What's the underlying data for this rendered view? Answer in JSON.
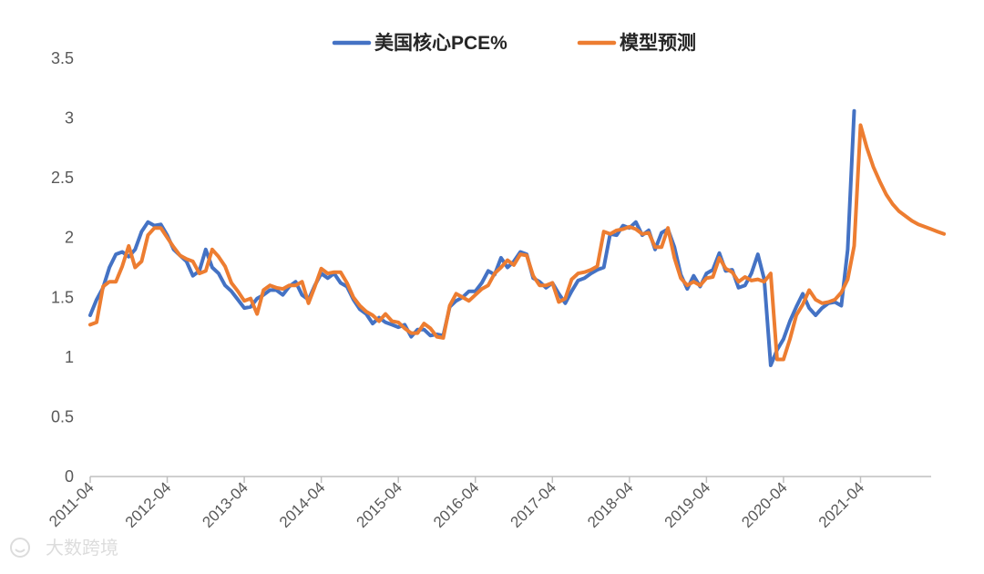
{
  "chart_data": {
    "type": "line",
    "title": "",
    "xlabel": "",
    "ylabel": "",
    "ylim": [
      0,
      3.5
    ],
    "yticks": [
      "0",
      "0.5",
      "1",
      "1.5",
      "2",
      "2.5",
      "3",
      "3.5"
    ],
    "x_start": "2011-04",
    "x_end": "2022-03",
    "xtick_labels": [
      "2011-04",
      "2012-04",
      "2013-04",
      "2014-04",
      "2015-04",
      "2016-04",
      "2017-04",
      "2018-04",
      "2019-04",
      "2020-04",
      "2021-04"
    ],
    "grid": false,
    "legend_position": "top",
    "series": [
      {
        "name": "美国核心PCE%",
        "color": "#4472C4",
        "values": [
          1.35,
          1.48,
          1.58,
          1.75,
          1.86,
          1.88,
          1.84,
          1.9,
          2.05,
          2.13,
          2.1,
          2.11,
          2.02,
          1.9,
          1.85,
          1.8,
          1.68,
          1.72,
          1.9,
          1.75,
          1.7,
          1.6,
          1.55,
          1.48,
          1.41,
          1.42,
          1.49,
          1.52,
          1.56,
          1.56,
          1.52,
          1.59,
          1.63,
          1.52,
          1.48,
          1.6,
          1.7,
          1.66,
          1.7,
          1.62,
          1.59,
          1.48,
          1.4,
          1.36,
          1.28,
          1.33,
          1.29,
          1.27,
          1.25,
          1.27,
          1.17,
          1.23,
          1.23,
          1.18,
          1.19,
          1.18,
          1.42,
          1.47,
          1.5,
          1.55,
          1.55,
          1.62,
          1.72,
          1.69,
          1.83,
          1.75,
          1.8,
          1.88,
          1.86,
          1.66,
          1.63,
          1.58,
          1.62,
          1.53,
          1.45,
          1.55,
          1.64,
          1.66,
          1.7,
          1.73,
          1.75,
          2.03,
          2.02,
          2.1,
          2.08,
          2.13,
          2.02,
          2.06,
          1.9,
          2.04,
          2.07,
          1.92,
          1.69,
          1.57,
          1.68,
          1.59,
          1.7,
          1.73,
          1.87,
          1.72,
          1.73,
          1.58,
          1.6,
          1.7,
          1.86,
          1.65,
          0.93,
          1.06,
          1.15,
          1.3,
          1.42,
          1.53,
          1.41,
          1.35,
          1.41,
          1.45,
          1.46,
          1.43,
          1.9,
          3.06
        ]
      },
      {
        "name": "模型预测",
        "color": "#ED7D31",
        "values": [
          1.27,
          1.29,
          1.59,
          1.63,
          1.63,
          1.76,
          1.93,
          1.75,
          1.8,
          2.02,
          2.08,
          2.08,
          2.0,
          1.92,
          1.85,
          1.82,
          1.8,
          1.7,
          1.72,
          1.9,
          1.84,
          1.76,
          1.62,
          1.55,
          1.47,
          1.49,
          1.36,
          1.56,
          1.6,
          1.58,
          1.57,
          1.6,
          1.6,
          1.63,
          1.45,
          1.59,
          1.74,
          1.7,
          1.71,
          1.71,
          1.62,
          1.5,
          1.43,
          1.38,
          1.35,
          1.3,
          1.36,
          1.3,
          1.29,
          1.24,
          1.2,
          1.2,
          1.28,
          1.24,
          1.17,
          1.16,
          1.43,
          1.53,
          1.5,
          1.47,
          1.52,
          1.57,
          1.6,
          1.7,
          1.75,
          1.81,
          1.77,
          1.86,
          1.85,
          1.68,
          1.6,
          1.6,
          1.62,
          1.46,
          1.49,
          1.65,
          1.7,
          1.71,
          1.73,
          1.76,
          2.05,
          2.03,
          2.06,
          2.07,
          2.09,
          2.07,
          2.03,
          2.04,
          1.92,
          1.92,
          2.08,
          1.83,
          1.66,
          1.6,
          1.63,
          1.6,
          1.66,
          1.67,
          1.83,
          1.74,
          1.71,
          1.63,
          1.67,
          1.64,
          1.65,
          1.63,
          1.7,
          0.98,
          0.98,
          1.15,
          1.35,
          1.44,
          1.56,
          1.48,
          1.45,
          1.46,
          1.48,
          1.54,
          1.65,
          1.93,
          2.94,
          2.75,
          2.59,
          2.47,
          2.36,
          2.28,
          2.22,
          2.18,
          2.14,
          2.11,
          2.09,
          2.07,
          2.05,
          2.03
        ]
      }
    ]
  },
  "watermark": {
    "icon": "smile-icon",
    "text": "大数跨境"
  }
}
